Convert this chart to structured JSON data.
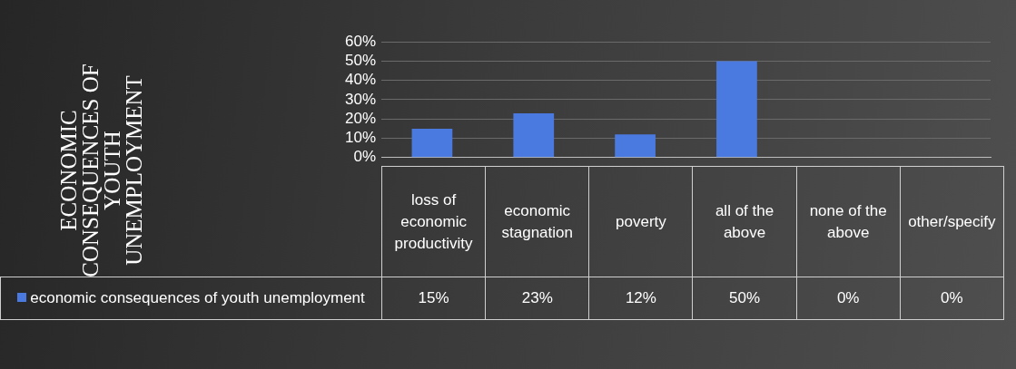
{
  "chart_data": {
    "type": "bar",
    "annotations": [
      "ECONOMIC CONSEQUENCES OF YOUTH UNEMPLOYMENT"
    ],
    "categories": [
      "loss of economic productivity",
      "economic stagnation",
      "poverty",
      "all of the above",
      "none of the above",
      "other/specify"
    ],
    "series": [
      {
        "name": "economic consequences of youth unemployment",
        "color": "#4a7ae0",
        "values": [
          15,
          23,
          12,
          50,
          0,
          0
        ],
        "value_labels": [
          "15%",
          "23%",
          "12%",
          "50%",
          "0%",
          "0%"
        ]
      }
    ],
    "ylim": [
      0,
      60
    ],
    "yticks": [
      {
        "value": 0,
        "label": "0%"
      },
      {
        "value": 10,
        "label": "10%"
      },
      {
        "value": 20,
        "label": "20%"
      },
      {
        "value": 30,
        "label": "30%"
      },
      {
        "value": 40,
        "label": "40%"
      },
      {
        "value": 50,
        "label": "50%"
      },
      {
        "value": 60,
        "label": "60%"
      }
    ],
    "grid": "y"
  }
}
